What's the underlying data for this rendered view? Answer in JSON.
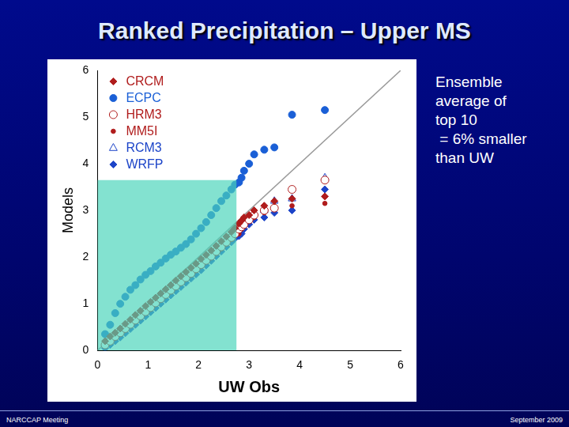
{
  "chart_data": {
    "type": "scatter",
    "title": "Ranked Precipitation – Upper MS",
    "annotation": [
      "Ensemble",
      "average of",
      "top 10",
      " = 6% smaller",
      "than UW"
    ],
    "x_label": "UW Obs",
    "y_label": "Models",
    "xlim": [
      0,
      6
    ],
    "xticks": [
      0,
      1,
      2,
      3,
      4,
      5,
      6
    ],
    "ylim": [
      0,
      6
    ],
    "yticks": [
      0,
      1,
      2,
      3,
      4,
      5,
      6
    ],
    "grid": false,
    "legend": "upper left",
    "x": [
      0.15,
      0.25,
      0.35,
      0.45,
      0.55,
      0.65,
      0.75,
      0.85,
      0.95,
      1.05,
      1.15,
      1.25,
      1.35,
      1.45,
      1.55,
      1.65,
      1.75,
      1.85,
      1.95,
      2.05,
      2.15,
      2.25,
      2.35,
      2.45,
      2.55,
      2.65,
      2.72,
      2.8,
      2.85,
      2.9,
      3.0,
      3.1,
      3.3,
      3.5,
      3.85,
      4.5
    ],
    "series": [
      {
        "name": "CRCM",
        "color": "#b01c1c",
        "marker": "diamond",
        "values": [
          0.2,
          0.3,
          0.38,
          0.47,
          0.57,
          0.66,
          0.76,
          0.85,
          0.95,
          1.04,
          1.13,
          1.22,
          1.31,
          1.4,
          1.5,
          1.59,
          1.68,
          1.77,
          1.86,
          1.96,
          2.05,
          2.14,
          2.24,
          2.34,
          2.44,
          2.54,
          2.62,
          2.72,
          2.78,
          2.85,
          2.9,
          3.0,
          3.1,
          3.2,
          3.25,
          3.3
        ]
      },
      {
        "name": "ECPC",
        "color": "#1a5fd6",
        "marker": "circle",
        "values": [
          0.35,
          0.55,
          0.8,
          1.0,
          1.15,
          1.3,
          1.4,
          1.52,
          1.62,
          1.7,
          1.8,
          1.88,
          1.97,
          2.05,
          2.12,
          2.2,
          2.28,
          2.38,
          2.5,
          2.62,
          2.75,
          2.9,
          3.05,
          3.2,
          3.32,
          3.45,
          3.55,
          3.6,
          3.7,
          3.85,
          4.0,
          4.2,
          4.3,
          4.35,
          5.05,
          5.15
        ]
      },
      {
        "name": "HRM3",
        "color": "#b01c1c",
        "marker": "open_circle",
        "values": [
          0.12,
          0.2,
          0.3,
          0.38,
          0.47,
          0.56,
          0.65,
          0.74,
          0.83,
          0.92,
          1.02,
          1.11,
          1.2,
          1.29,
          1.38,
          1.47,
          1.56,
          1.65,
          1.75,
          1.84,
          1.93,
          2.02,
          2.12,
          2.22,
          2.32,
          2.42,
          2.5,
          2.6,
          2.65,
          2.7,
          2.8,
          2.9,
          3.0,
          3.05,
          3.45,
          3.65
        ]
      },
      {
        "name": "MM5I",
        "color": "#b01c1c",
        "marker": "dot",
        "values": [
          0.1,
          0.18,
          0.27,
          0.36,
          0.45,
          0.54,
          0.63,
          0.72,
          0.81,
          0.9,
          0.99,
          1.08,
          1.17,
          1.26,
          1.35,
          1.44,
          1.53,
          1.62,
          1.71,
          1.8,
          1.9,
          1.99,
          2.08,
          2.18,
          2.28,
          2.38,
          2.46,
          2.5,
          2.6,
          2.7,
          2.78,
          2.85,
          2.95,
          3.05,
          3.1,
          3.15
        ]
      },
      {
        "name": "RCM3",
        "color": "#1c44c8",
        "marker": "open_triangle",
        "values": [
          0.14,
          0.22,
          0.31,
          0.4,
          0.49,
          0.58,
          0.67,
          0.76,
          0.86,
          0.95,
          1.04,
          1.13,
          1.22,
          1.31,
          1.41,
          1.5,
          1.59,
          1.68,
          1.77,
          1.86,
          1.95,
          2.05,
          2.15,
          2.25,
          2.35,
          2.45,
          2.55,
          2.7,
          2.75,
          2.8,
          2.85,
          2.95,
          3.0,
          3.2,
          3.25,
          3.7
        ]
      },
      {
        "name": "WRFP",
        "color": "#1c44c8",
        "marker": "diamond",
        "values": [
          0.05,
          0.12,
          0.2,
          0.28,
          0.37,
          0.46,
          0.55,
          0.64,
          0.73,
          0.82,
          0.91,
          1.0,
          1.09,
          1.18,
          1.27,
          1.36,
          1.45,
          1.54,
          1.63,
          1.72,
          1.82,
          1.92,
          2.02,
          2.12,
          2.22,
          2.32,
          2.4,
          2.45,
          2.5,
          2.6,
          2.7,
          2.8,
          2.85,
          2.95,
          3.0,
          3.45
        ]
      }
    ],
    "reference_line": {
      "x": [
        0,
        6
      ],
      "y": [
        0,
        6
      ]
    },
    "shaded_region": {
      "x": [
        0,
        2.75
      ],
      "y": [
        0,
        3.65
      ]
    }
  },
  "footer": {
    "left": "NARCCAP Meeting",
    "right": "September 2009"
  }
}
